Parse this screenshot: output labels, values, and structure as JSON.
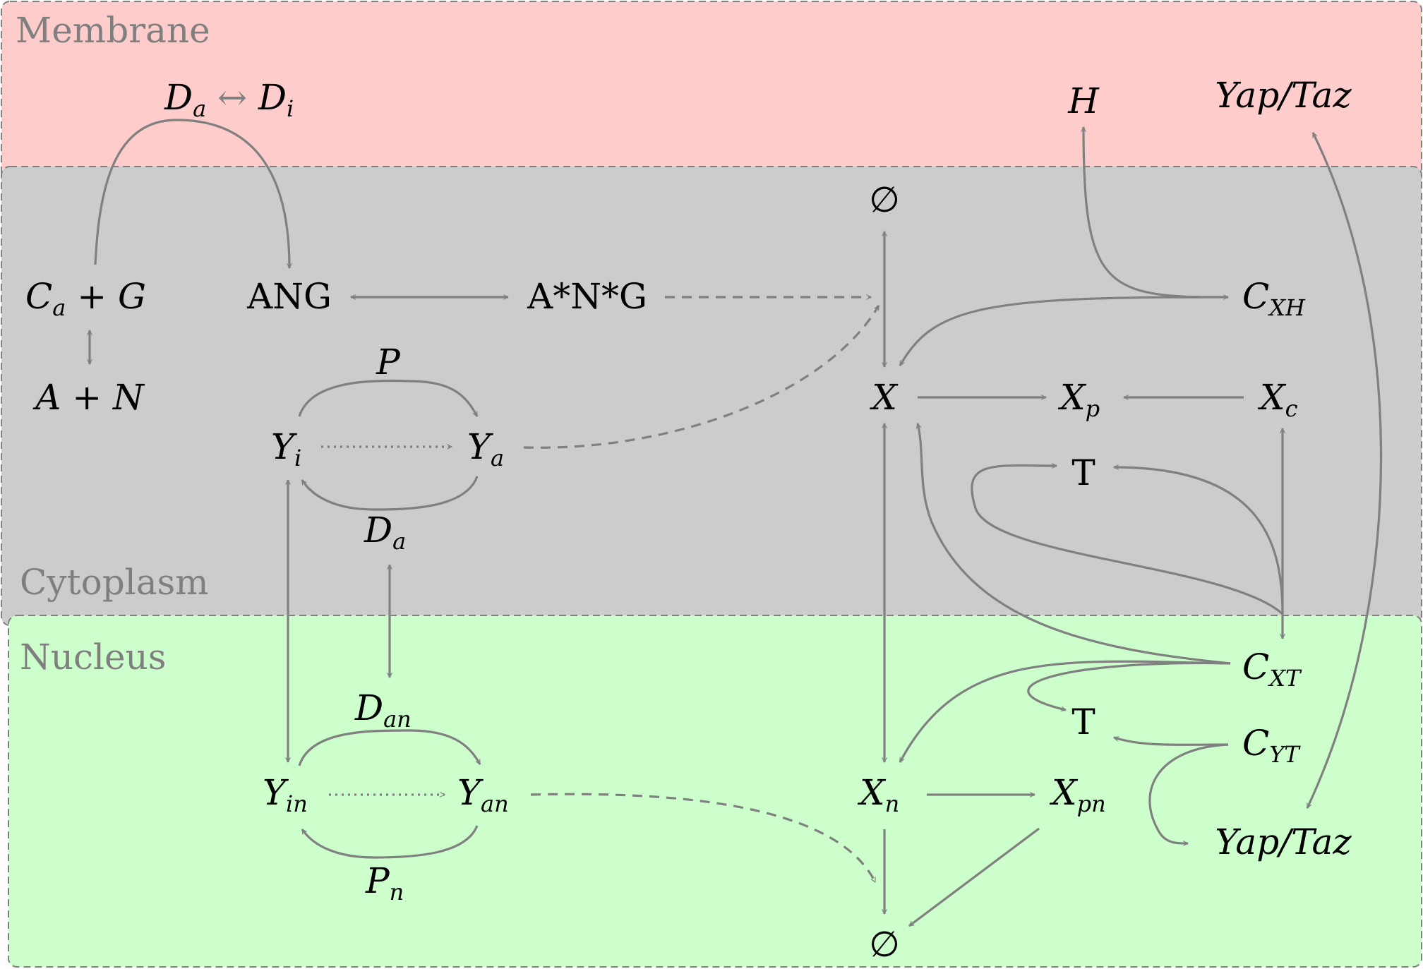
{
  "regions": {
    "membrane": {
      "label": "Membrane",
      "color": "#ffcccc"
    },
    "cytoplasm": {
      "label": "Cytoplasm",
      "color": "#cccccc"
    },
    "nucleus": {
      "label": "Nucleus",
      "color": "#ccffcc"
    }
  },
  "nodes": {
    "da_di": {
      "base": "D",
      "sub": "a",
      "mid": " ↔ ",
      "base2": "D",
      "sub2": "i"
    },
    "h": {
      "base": "H"
    },
    "yap_taz_m": {
      "base": "Yap/Taz"
    },
    "empty_top": {
      "base": "∅"
    },
    "ca_g": {
      "base": "C",
      "sub": "a",
      "rest": " + G"
    },
    "ang": {
      "base": "ANG"
    },
    "ang_star": {
      "base": "A*N*G"
    },
    "cxh": {
      "base": "C",
      "sub": "XH"
    },
    "a_n": {
      "base": "A + N"
    },
    "p": {
      "base": "P"
    },
    "x": {
      "base": "X"
    },
    "xp": {
      "base": "X",
      "sub": "p"
    },
    "xc": {
      "base": "X",
      "sub": "c"
    },
    "yi": {
      "base": "Y",
      "sub": "i"
    },
    "ya": {
      "base": "Y",
      "sub": "a"
    },
    "t_cyto": {
      "base": "T"
    },
    "da": {
      "base": "D",
      "sub": "a"
    },
    "cxt": {
      "base": "C",
      "sub": "XT"
    },
    "dan": {
      "base": "D",
      "sub": "an"
    },
    "t_nuc": {
      "base": "T"
    },
    "cyt": {
      "base": "C",
      "sub": "YT"
    },
    "yin": {
      "base": "Y",
      "sub": "in"
    },
    "yan": {
      "base": "Y",
      "sub": "an"
    },
    "xn": {
      "base": "X",
      "sub": "n"
    },
    "xpn": {
      "base": "X",
      "sub": "pn"
    },
    "yap_taz_n": {
      "base": "Yap/Taz"
    },
    "pn": {
      "base": "P",
      "sub": "n"
    },
    "empty_bottom": {
      "base": "∅"
    }
  },
  "edge_color": "#808080"
}
